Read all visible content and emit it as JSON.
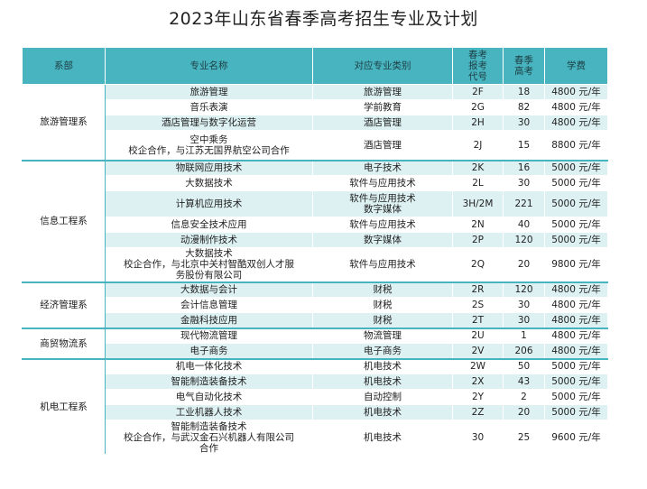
{
  "title": "2023年山东省春季高考招生专业及计划",
  "headers": [
    "系部",
    "专业名称",
    "对应专业类别",
    "春考\n报考\n代号",
    "春季\n高考",
    "学费"
  ],
  "departments": [
    {
      "name": "旅游管理系",
      "rows": [
        {
          "major": "旅游管理",
          "category": "旅游管理",
          "code": "2F",
          "quota": "18",
          "fee": "4800 元/年"
        },
        {
          "major": "音乐表演",
          "category": "学前教育",
          "code": "2G",
          "quota": "82",
          "fee": "4800 元/年"
        },
        {
          "major": "酒店管理与数字化运营",
          "category": "酒店管理",
          "code": "2H",
          "quota": "30",
          "fee": "4800 元/年"
        },
        {
          "major": "空中乘务\n校企合作，与江苏无国界航空公司合作",
          "category": "酒店管理",
          "code": "2J",
          "quota": "15",
          "fee": "8800 元/年"
        }
      ]
    },
    {
      "name": "信息工程系",
      "rows": [
        {
          "major": "物联网应用技术",
          "category": "电子技术",
          "code": "2K",
          "quota": "16",
          "fee": "5000 元/年"
        },
        {
          "major": "大数据技术",
          "category": "软件与应用技术",
          "code": "2L",
          "quota": "30",
          "fee": "5000 元/年"
        },
        {
          "major": "计算机应用技术",
          "category": "软件与应用技术\n数字媒体",
          "code": "3H/2M",
          "quota": "221",
          "fee": "5000 元/年"
        },
        {
          "major": "信息安全技术应用",
          "category": "软件与应用技术",
          "code": "2N",
          "quota": "40",
          "fee": "5000 元/年"
        },
        {
          "major": "动漫制作技术",
          "category": "数字媒体",
          "code": "2P",
          "quota": "120",
          "fee": "5000 元/年"
        },
        {
          "major": "大数据技术\n校企合作，与北京中关村智酷双创人才服\n务股份有限公司",
          "category": "软件与应用技术",
          "code": "2Q",
          "quota": "20",
          "fee": "9800 元/年"
        }
      ]
    },
    {
      "name": "经济管理系",
      "rows": [
        {
          "major": "大数据与会计",
          "category": "财税",
          "code": "2R",
          "quota": "120",
          "fee": "4800 元/年"
        },
        {
          "major": "会计信息管理",
          "category": "财税",
          "code": "2S",
          "quota": "30",
          "fee": "4800 元/年"
        },
        {
          "major": "金融科技应用",
          "category": "财税",
          "code": "2T",
          "quota": "30",
          "fee": "4800 元/年"
        }
      ]
    },
    {
      "name": "商贸物流系",
      "rows": [
        {
          "major": "现代物流管理",
          "category": "物流管理",
          "code": "2U",
          "quota": "1",
          "fee": "4800 元/年"
        },
        {
          "major": "电子商务",
          "category": "电子商务",
          "code": "2V",
          "quota": "206",
          "fee": "4800 元/年"
        }
      ]
    },
    {
      "name": "机电工程系",
      "rows": [
        {
          "major": "机电一体化技术",
          "category": "机电技术",
          "code": "2W",
          "quota": "50",
          "fee": "5000 元/年"
        },
        {
          "major": "智能制造装备技术",
          "category": "机电技术",
          "code": "2X",
          "quota": "43",
          "fee": "5000 元/年"
        },
        {
          "major": "电气自动化技术",
          "category": "自动控制",
          "code": "2Y",
          "quota": "2",
          "fee": "5000 元/年"
        },
        {
          "major": "工业机器人技术",
          "category": "机电技术",
          "code": "2Z",
          "quota": "20",
          "fee": "5000 元/年"
        },
        {
          "major": "智能制造装备技术\n校企合作，与武汉金石兴机器人有限公司\n合作",
          "category": "机电技术",
          "code": "30",
          "quota": "25",
          "fee": "9600 元/年"
        }
      ]
    }
  ]
}
